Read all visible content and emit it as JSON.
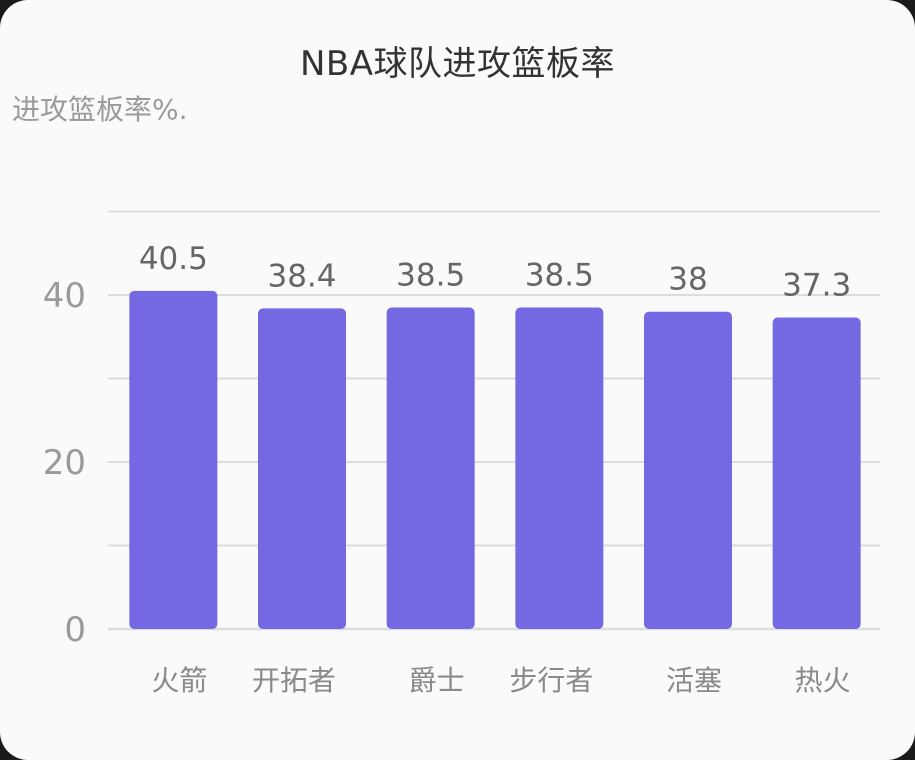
{
  "chart_data": {
    "type": "bar",
    "title": "NBA球队进攻篮板率",
    "subtitle": "进攻篮板率%.",
    "categories": [
      "火箭",
      "开拓者",
      "爵士",
      "步行者",
      "活塞",
      "热火"
    ],
    "values": [
      40.5,
      38.4,
      38.5,
      38.5,
      38,
      37.3
    ],
    "value_labels": [
      "40.5",
      "38.4",
      "38.5",
      "38.5",
      "38",
      "37.3"
    ],
    "ylim": [
      0,
      50
    ],
    "y_ticks": [
      0,
      20,
      40
    ],
    "y_tick_labels": [
      "0",
      "20",
      "40"
    ],
    "grid": true,
    "bar_color": "#7569e3",
    "grid_color": "#dcdcdc"
  }
}
